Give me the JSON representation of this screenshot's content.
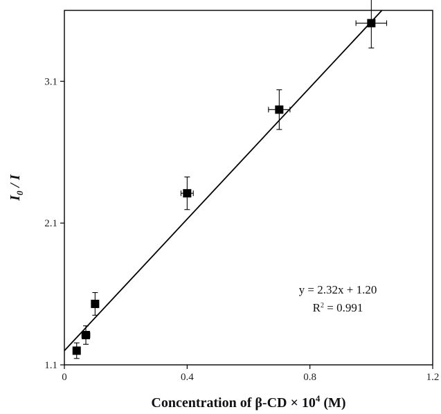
{
  "chart_data": {
    "type": "scatter",
    "xlabel_main": "Concentration of β-CD × 10",
    "xlabel_exp": "4",
    "xlabel_unit": " (M)",
    "ylabel_main": "I",
    "ylabel_sub": "0",
    "ylabel_tail": " / I",
    "xlim": [
      0,
      1.2
    ],
    "ylim": [
      1.1,
      3.6
    ],
    "x_ticks": [
      {
        "value": 0,
        "label": "0"
      },
      {
        "value": 0.4,
        "label": "0.4"
      },
      {
        "value": 0.8,
        "label": "0.8"
      },
      {
        "value": 1.2,
        "label": "1.2"
      }
    ],
    "y_ticks": [
      {
        "value": 1.1,
        "label": "1.1"
      },
      {
        "value": 2.1,
        "label": "2.1"
      },
      {
        "value": 3.1,
        "label": "3.1"
      }
    ],
    "points": [
      {
        "x": 0.04,
        "y": 1.2,
        "xerr": 0.01,
        "yerr": 0.055
      },
      {
        "x": 0.07,
        "y": 1.31,
        "xerr": 0.013,
        "yerr": 0.065
      },
      {
        "x": 0.1,
        "y": 1.53,
        "xerr": 0.0,
        "yerr": 0.08
      },
      {
        "x": 0.4,
        "y": 2.31,
        "xerr": 0.02,
        "yerr": 0.115
      },
      {
        "x": 0.7,
        "y": 2.9,
        "xerr": 0.035,
        "yerr": 0.14
      },
      {
        "x": 1.0,
        "y": 3.51,
        "xerr": 0.05,
        "yerr": 0.175
      }
    ],
    "fit": {
      "slope": 2.32,
      "intercept": 1.2
    },
    "equation": "y = 2.32x + 1.20",
    "r2_main": "R",
    "r2_sup": "2",
    "r2_value": " = 0.991"
  }
}
